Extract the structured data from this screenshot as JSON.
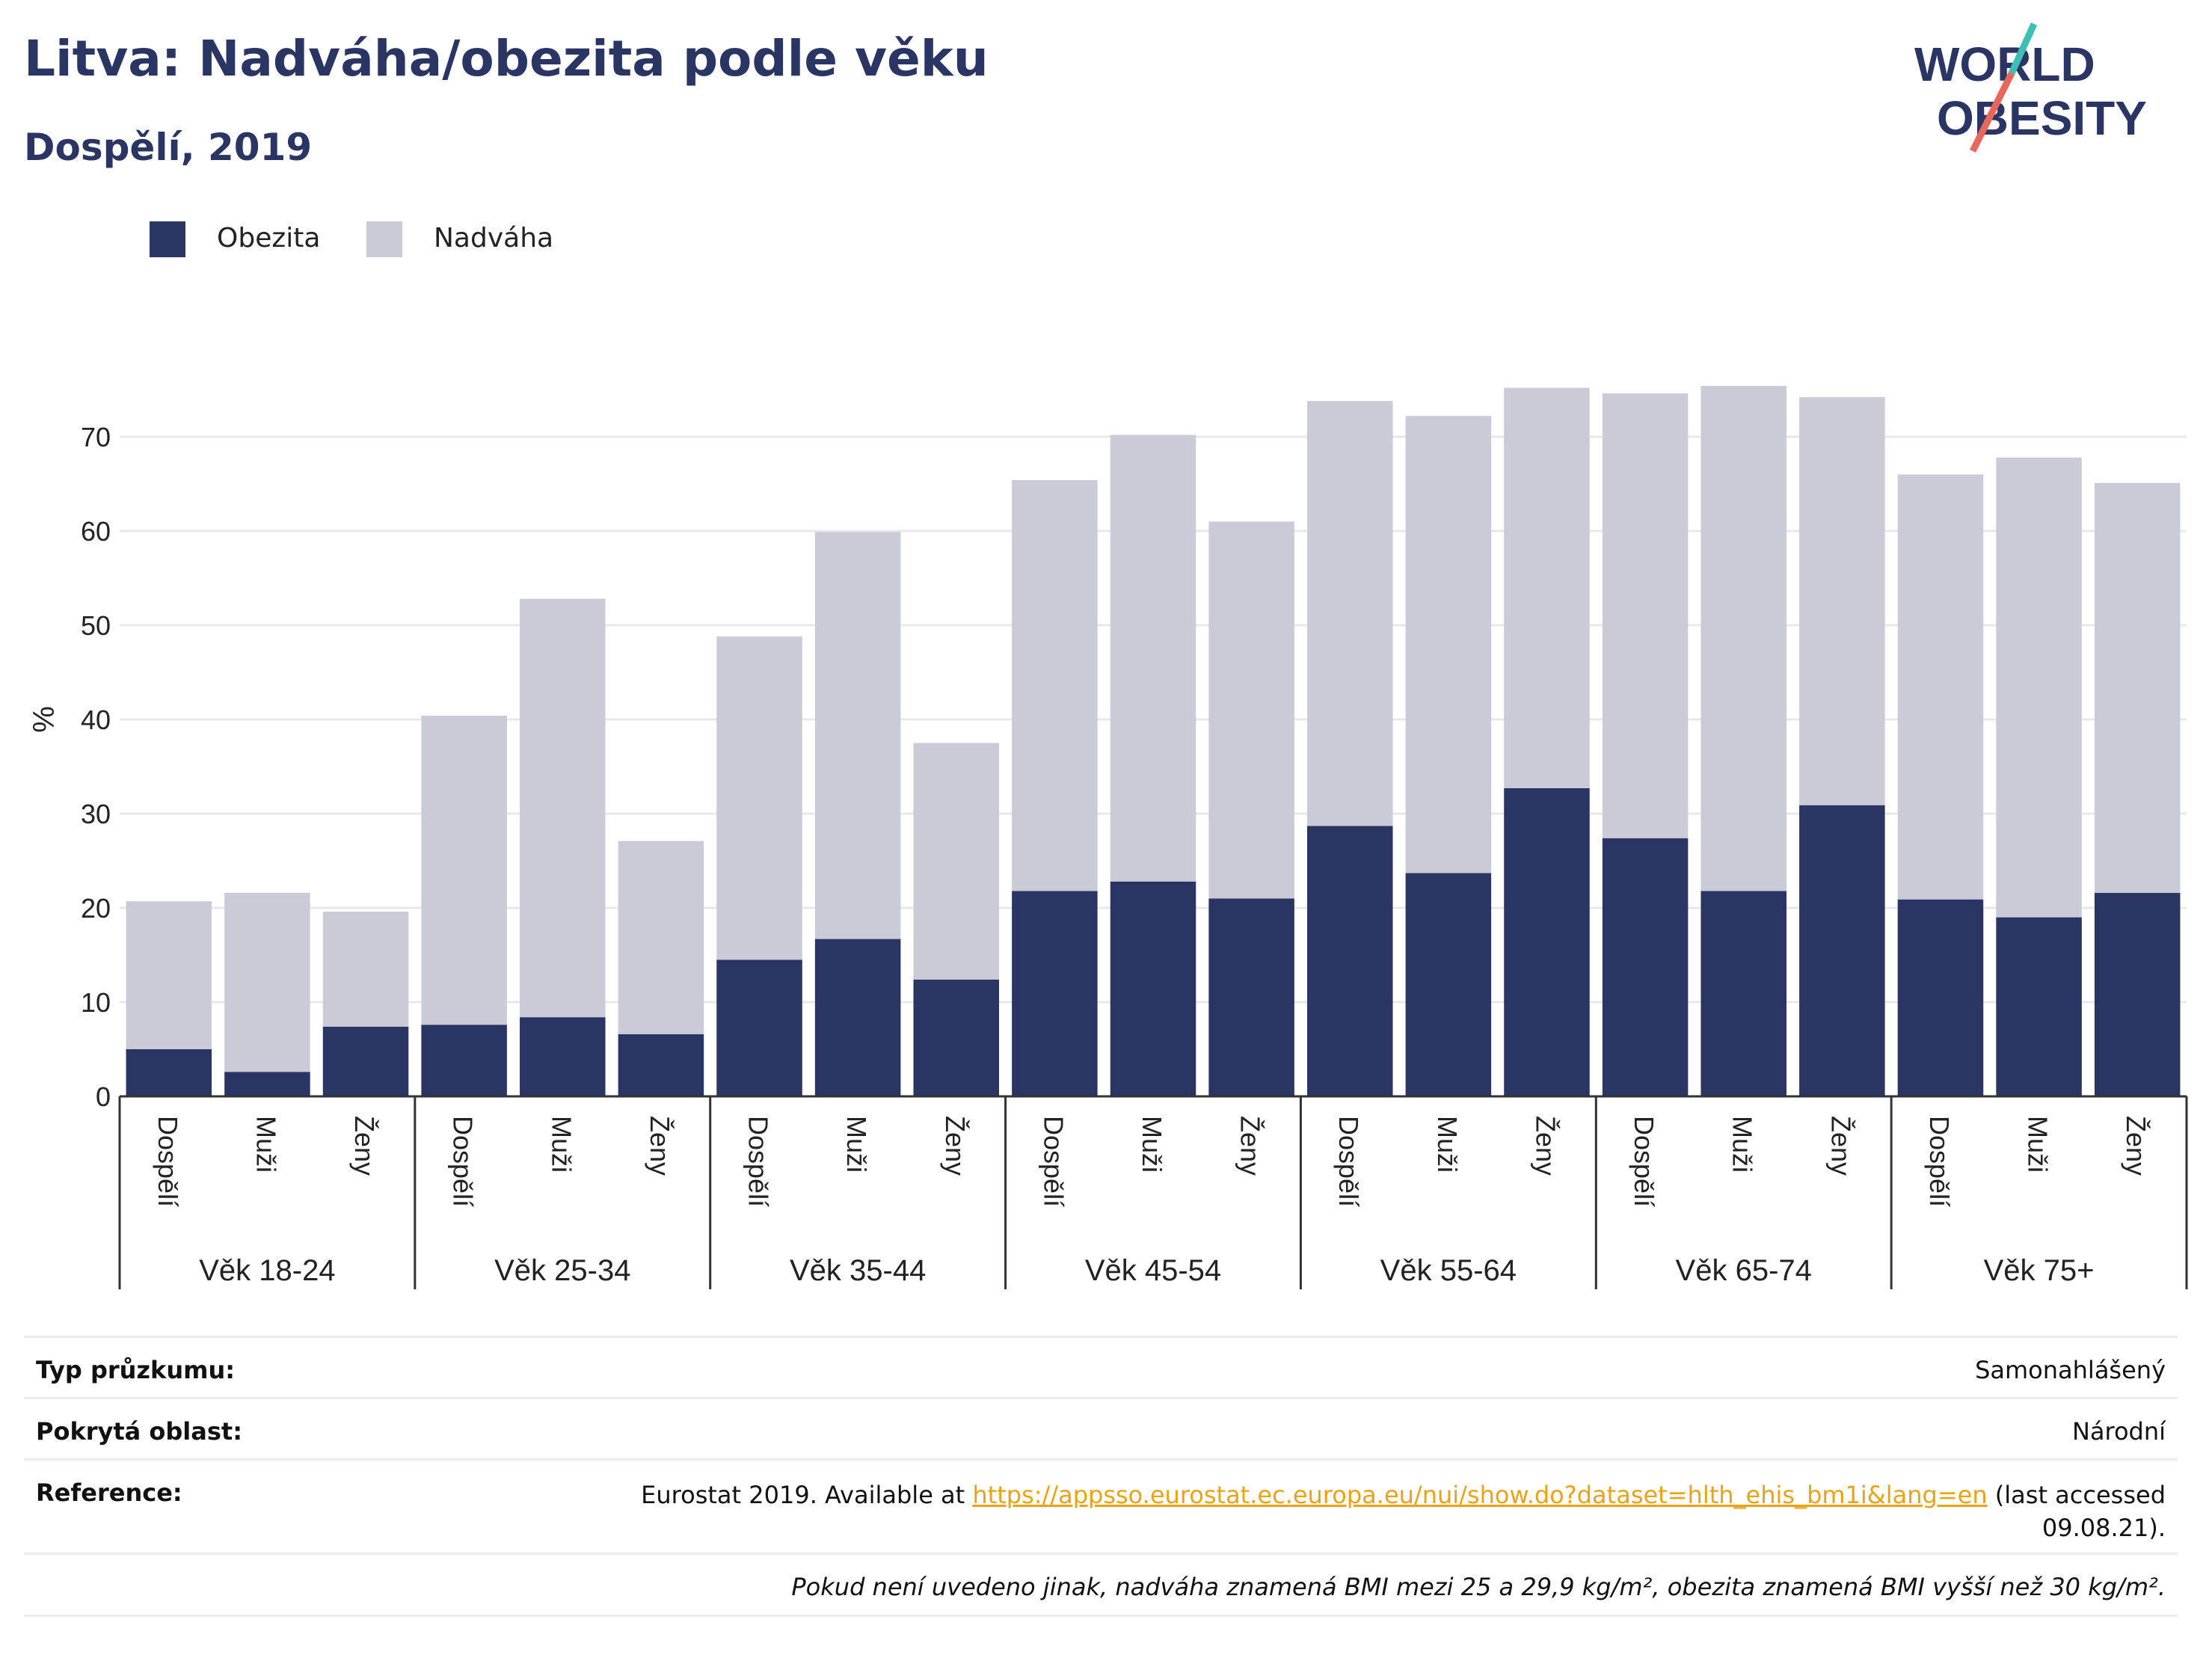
{
  "header": {
    "title": "Litva: Nadváha/obezita podle věku",
    "subtitle": "Dospělí, 2019"
  },
  "logo": {
    "line1": "WORLD",
    "line2": "OBESITY"
  },
  "colors": {
    "obesity": "#2a3563",
    "overweight": "#cacbd7",
    "logo_teal": "#3cbfb4",
    "logo_coral": "#e8675b"
  },
  "chart_data": {
    "type": "bar",
    "stacked": true,
    "ylabel": "%",
    "ylim": [
      0,
      80
    ],
    "yticks": [
      0,
      10,
      20,
      30,
      40,
      50,
      60,
      70
    ],
    "grid": true,
    "legend_position": "top-left",
    "groups": [
      "Věk 18-24",
      "Věk 25-34",
      "Věk 35-44",
      "Věk 45-54",
      "Věk 55-64",
      "Věk 65-74",
      "Věk 75+"
    ],
    "categories": [
      "Dospělí",
      "Muži",
      "Ženy"
    ],
    "series": [
      {
        "name": "Obezita",
        "values": [
          [
            5.0,
            2.6,
            7.4
          ],
          [
            7.6,
            8.4,
            6.6
          ],
          [
            14.5,
            16.7,
            12.4
          ],
          [
            21.8,
            22.8,
            21.0
          ],
          [
            28.7,
            23.7,
            32.7
          ],
          [
            27.4,
            21.8,
            30.9
          ],
          [
            20.9,
            19.0,
            21.6
          ]
        ]
      },
      {
        "name": "Nadváha",
        "values": [
          [
            15.7,
            19.0,
            12.2
          ],
          [
            32.8,
            44.4,
            20.5
          ],
          [
            34.3,
            43.2,
            25.1
          ],
          [
            43.6,
            47.4,
            40.0
          ],
          [
            45.1,
            48.5,
            42.5
          ],
          [
            47.2,
            53.6,
            43.3
          ],
          [
            45.1,
            48.8,
            43.5
          ]
        ]
      }
    ]
  },
  "info": {
    "survey_label": "Typ průzkumu:",
    "survey_value": "Samonahlášený",
    "area_label": "Pokrytá oblast:",
    "area_value": "Národní",
    "ref_label": "Reference:",
    "ref_pre": "Eurostat 2019. Available at ",
    "ref_link": "https://appsso.eurostat.ec.europa.eu/nui/show.do?dataset=hlth_ehis_bm1i&lang=en",
    "ref_post": " (last accessed",
    "ref_date": "09.08.21).",
    "note": "Pokud není uvedeno jinak, nadváha znamená BMI mezi 25 a 29,9 kg/m², obezita znamená BMI vyšší než 30 kg/m²."
  }
}
